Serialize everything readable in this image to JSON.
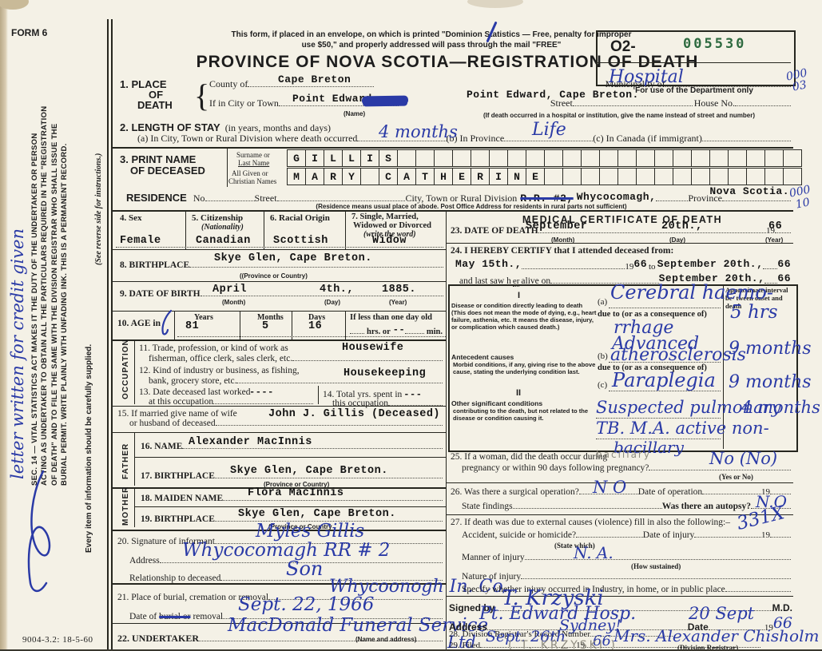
{
  "colors": {
    "paper": "#f4f1e6",
    "ink": "#1d1d1d",
    "pen_blue": "#2a3aa6",
    "stamp_green": "#2d6a3f",
    "pencil_gray": "#8f8c80"
  },
  "header": {
    "form_no": "FORM 6",
    "mail_notice_1": "This form, if placed in an envelope, on which is printed \"Dominion Statistics — Free, penalty for improper",
    "mail_notice_2": "use $50,\" and properly addressed will pass through the mail \"FREE\"",
    "title": "PROVINCE OF NOVA SCOTIA—REGISTRATION OF DEATH",
    "dept_prefix": "O2-",
    "dept_stamp": "005530",
    "dept_caption": "For use of the Department only",
    "pen_num_1": "000",
    "pen_num_2": "03"
  },
  "margin": {
    "handwritten_note": "letter written for credit given",
    "statute": "SEC. 14 — VITAL STATISTICS ACT MAKES IT THE DUTY OF THE UNDERTAKER OR PERSON ACTING AS UNDERTAKER TO OBTAIN ALL THE PARTICULARS REQUIRED IN THE \"REGISTRATION OF DEATH\" AND TO FILE THE SAME WITH THE DIVISION REGISTRAR WHO SHALL ISSUE THE BURIAL PERMIT. WRITE PLAINLY WITH UNFADING INK. THIS IS A PERMANENT RECORD.",
    "supply_note": "Every item of information should be carefully supplied.",
    "reverse_note": "(See reverse side for instructions.)",
    "print_code": "9004-3.2: 18-5-60"
  },
  "place": {
    "num_label": "1. PLACE",
    "label_2": "OF",
    "label_3": "DEATH",
    "brace": "{",
    "county_label": "County of",
    "county_value": "Cape Breton",
    "municipality_label": "Municipality of",
    "municipality_value": "Hospital",
    "city_label": "If in City or Town",
    "city_value": "Point Edward",
    "city_sub": "(Name)",
    "street_label": "Street",
    "street_value": "Point Edward, Cape Breton.",
    "house_label": "House No.",
    "hospital_note": "(If death occurred in a hospital or institution, give the name instead of street and number)"
  },
  "stay": {
    "num_label": "2. LENGTH OF STAY",
    "paren": "(in years, months and days)",
    "a_label": "(a) In City, Town or Rural Division where death occurred",
    "a_value": "4 months",
    "b_label": "(b) In Province",
    "b_value": "Life",
    "c_label": "(c) In Canada (if immigrant)"
  },
  "name": {
    "num_label": "3. PRINT NAME",
    "label_2": "OF DECEASED",
    "surname_label_1": "Surname or",
    "surname_label_2": "Last Name",
    "surname": "GILLIS",
    "given_label_1": "All Given or",
    "given_label_2": "Christian Names",
    "given": "MARY CATHERINE"
  },
  "residence": {
    "label": "RESIDENCE",
    "no_label": "No",
    "street_label": "Street",
    "division_label": "City, Town or Rural Division",
    "struck_value": "R.R. #2,",
    "division_value": "Whycocomagh,",
    "province_label": "Province",
    "province_value": "Nova Scotia.",
    "pen_num_1": "000",
    "pen_num_2": "10",
    "note": "(Residence means usual place of abode. Post Office Address for residents in rural parts not sufficient)"
  },
  "vitals": {
    "sex_label": "4. Sex",
    "sex_value": "Female",
    "cit_label": "5. Citizenship",
    "cit_sub": "(Nationality)",
    "cit_value": "Canadian",
    "origin_label": "6. Racial Origin",
    "origin_value": "Scottish",
    "marital_label_1": "7. Single, Married,",
    "marital_label_2": "Widowed or Divorced",
    "marital_sub": "(write the word)",
    "marital_value": "Widow"
  },
  "birth": {
    "bp_label": "8. BIRTHPLACE",
    "bp_value": "Skye Glen, Cape Breton.",
    "bp_sub": "((Province or Country)",
    "dob_label": "9. DATE OF BIRTH",
    "dob_month": "April",
    "dob_month_sub": "(Month)",
    "dob_day": "4th.,",
    "dob_day_sub": "(Day)",
    "dob_year": "1885.",
    "dob_year_sub": "(Year)"
  },
  "age": {
    "label": "10. AGE in",
    "years_label": "Years",
    "years": "81",
    "months_label": "Months",
    "months": "5",
    "days_label": "Days",
    "days": "16",
    "less_label": "If less than one day old",
    "less_a": "hrs. or",
    "less_dash": "--",
    "less_b": "min."
  },
  "occupation": {
    "side_label": "OCCUPATION",
    "t11_a": "11. Trade, profession, or kind of work as",
    "t11_b": "fisherman, office clerk, sales clerk, etc.",
    "t11_value": "Housewife",
    "t12_a": "12. Kind of industry or business, as fishing,",
    "t12_b": "bank, grocery store, etc.",
    "t12_value": "Housekeeping",
    "t13_a": "13. Date deceased last worked",
    "t13_b": "at this occupation",
    "t13_value": "----",
    "t14_a": "14. Total yrs. spent in",
    "t14_dash": "---",
    "t14_b": "this occupation"
  },
  "spouse": {
    "label_a": "15. If married give name of wife",
    "label_b": "or husband of deceased",
    "value": "John J. Gillis (Deceased)"
  },
  "father": {
    "side_label": "FATHER",
    "name_label": "16. NAME",
    "name_value": "Alexander MacInnis",
    "bp_label": "17. BIRTHPLACE",
    "bp_value": "Skye Glen, Cape Breton.",
    "bp_sub": "(Province or Country)"
  },
  "mother": {
    "side_label": "MOTHER",
    "name_label": "18. MAIDEN NAME",
    "name_value": "Flora MacInnis",
    "bp_label": "19. BIRTHPLACE",
    "bp_value": "Skye Glen, Cape Breton.",
    "bp_sub": "(Province or Country"
  },
  "informant": {
    "sig_label": "20. Signature of informant",
    "sig_value": "Myles Gillis",
    "addr_label": "Address",
    "addr_value": "Whycocomagh   RR # 2",
    "rel_label": "Relationship to deceased",
    "rel_value": "Son"
  },
  "burial": {
    "place_label": "21. Place of burial, cremation or removal",
    "place_value": "Whycoonogh In. Co.",
    "date_label_a": "Date of",
    "date_struck": "burial or",
    "date_label_b": "removal",
    "date_value": "Sept. 22, 1966"
  },
  "undertaker": {
    "label": "22. UNDERTAKER",
    "value": "MacDonald Funeral Service",
    "value_2": "Ltd",
    "sub": "(Name and address)"
  },
  "medical": {
    "title": "MEDICAL CERTIFICATE OF DEATH",
    "d23_label": "23. DATE OF DEATH",
    "d23_month": "September",
    "d23_month_sub": "(Month)",
    "d23_day": "20th.,",
    "d23_day_sub": "(Day)",
    "d23_pre": "19",
    "d23_year": "66",
    "d23_year_sub": "(Year)",
    "c24_label": "24. I HEREBY CERTIFY that I attended deceased from:",
    "from_value": "May 15th.,",
    "from_pre": "19",
    "from_year": "66",
    "to_label": "to",
    "to_value": "September 20th.,",
    "to_pre": "19",
    "to_year": "66",
    "saw_a": "and last saw h",
    "saw_er": "er",
    "saw_b": "alive on",
    "saw_value": "September 20th.,",
    "saw_pre": "19",
    "saw_year": "66"
  },
  "cause": {
    "title": "CAUSE OF DEATH",
    "interval_header": "Approximate interval be- tween onset and death",
    "part1": "I",
    "disease_text": "Disease or condition directly leading to death (This does not mean the mode of dying, e.g., heart failure, asthenia, etc. It means the disease, injury, or complication which caused death.)",
    "a_prefix": "(a)",
    "a_value": "Cerebral haemo-",
    "a_value2": "rrhage",
    "due_a": "due to (or as a consequence of)",
    "b_prefix": "(b)",
    "b_value_top": "Advanced",
    "b_value": "atherosclerosis",
    "due_b": "due to (or as a consequence of)",
    "c_prefix": "(c)",
    "c_value": "Paraplegia",
    "antecedent_bold": "Antecedent causes",
    "antecedent_text": "Morbid conditions, if any, giving rise to the above cause, stating the underlying condition last.",
    "part2": "II",
    "other_bold": "Other significant conditions",
    "other_text": "contributing to the death, but not related to the disease or condition causing it.",
    "other_value_1": "Suspected pulmonary",
    "other_value_2": "TB. M.A. active non-",
    "other_value_3": "bacillary",
    "other_pencil": "bacillary",
    "interval_a": "5 hrs",
    "interval_b": "9 months",
    "interval_c": "9 months",
    "interval_other": "4 months"
  },
  "questions": {
    "q25_a": "25. If a woman, did the death occur during",
    "q25_b": "pregnancy or within 90 days following pregnancy?",
    "q25_value": "No (No)",
    "q25_sub": "(Yes or No)",
    "q26_a": "26. Was there a surgical operation?",
    "q26_value": "N O",
    "q26_b": "Date of operation",
    "q26_pre": "19",
    "q26_c": "State findings",
    "q26_d": "Was there an autopsy?",
    "q26_autopsy": "N.O",
    "q27_a": "27. If death was due to external causes (violence) fill in also the following:–",
    "q27_pen": "331X",
    "q27_b": "Accident, suicide or homicide?",
    "q27_b_sub": "(State which)",
    "q27_c": "Date of injury",
    "q27_pre": "19",
    "q27_d": "Manner of injury",
    "q27_d_value": "N. A.",
    "q27_d_sub": "(How sustained)",
    "q27_e": "Nature of injury",
    "q27_f": "Specify whether injury occurred in Industry, in home, or in public place"
  },
  "certifier": {
    "signed_label": "Signed by",
    "signed_value": "T. Krzyski",
    "md": "M.D.",
    "addr_label": "Address",
    "addr_value": "Pt. Edward Hosp.",
    "addr_value_2": "Sydney!",
    "date_label": "Date",
    "date_value": "20 Sept",
    "date_pre": "19",
    "date_year": "66",
    "pencil_note": "( T. KRZYSKI )"
  },
  "registrar": {
    "q28_label": "28. Division Registrar's Record Number",
    "q29_label": "29. Filed",
    "q29_date": "Sept. 26th",
    "q29_pre": "19",
    "q29_year": "66",
    "q29_name": "Mrs. Alexander Chisholm",
    "q29_sub": "(Division Registrar)"
  }
}
